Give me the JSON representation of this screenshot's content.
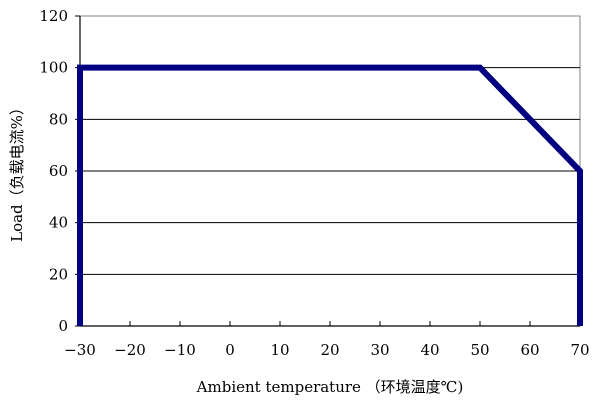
{
  "chart_data": {
    "type": "line",
    "title": "",
    "xlabel": "Ambient temperature （环境温度℃)",
    "ylabel": "Load（负载电流%）",
    "xlim": [
      -30,
      70
    ],
    "ylim": [
      0,
      120
    ],
    "xticks": [
      -30,
      -20,
      -10,
      0,
      10,
      20,
      30,
      40,
      50,
      60,
      70
    ],
    "yticks": [
      0,
      20,
      40,
      60,
      80,
      100,
      120
    ],
    "grid": "horizontal",
    "legend": "none",
    "series": [
      {
        "x": [
          -30,
          -30,
          50,
          70,
          70
        ],
        "y": [
          0,
          100,
          100,
          60,
          0
        ],
        "color": "#000080"
      }
    ]
  }
}
